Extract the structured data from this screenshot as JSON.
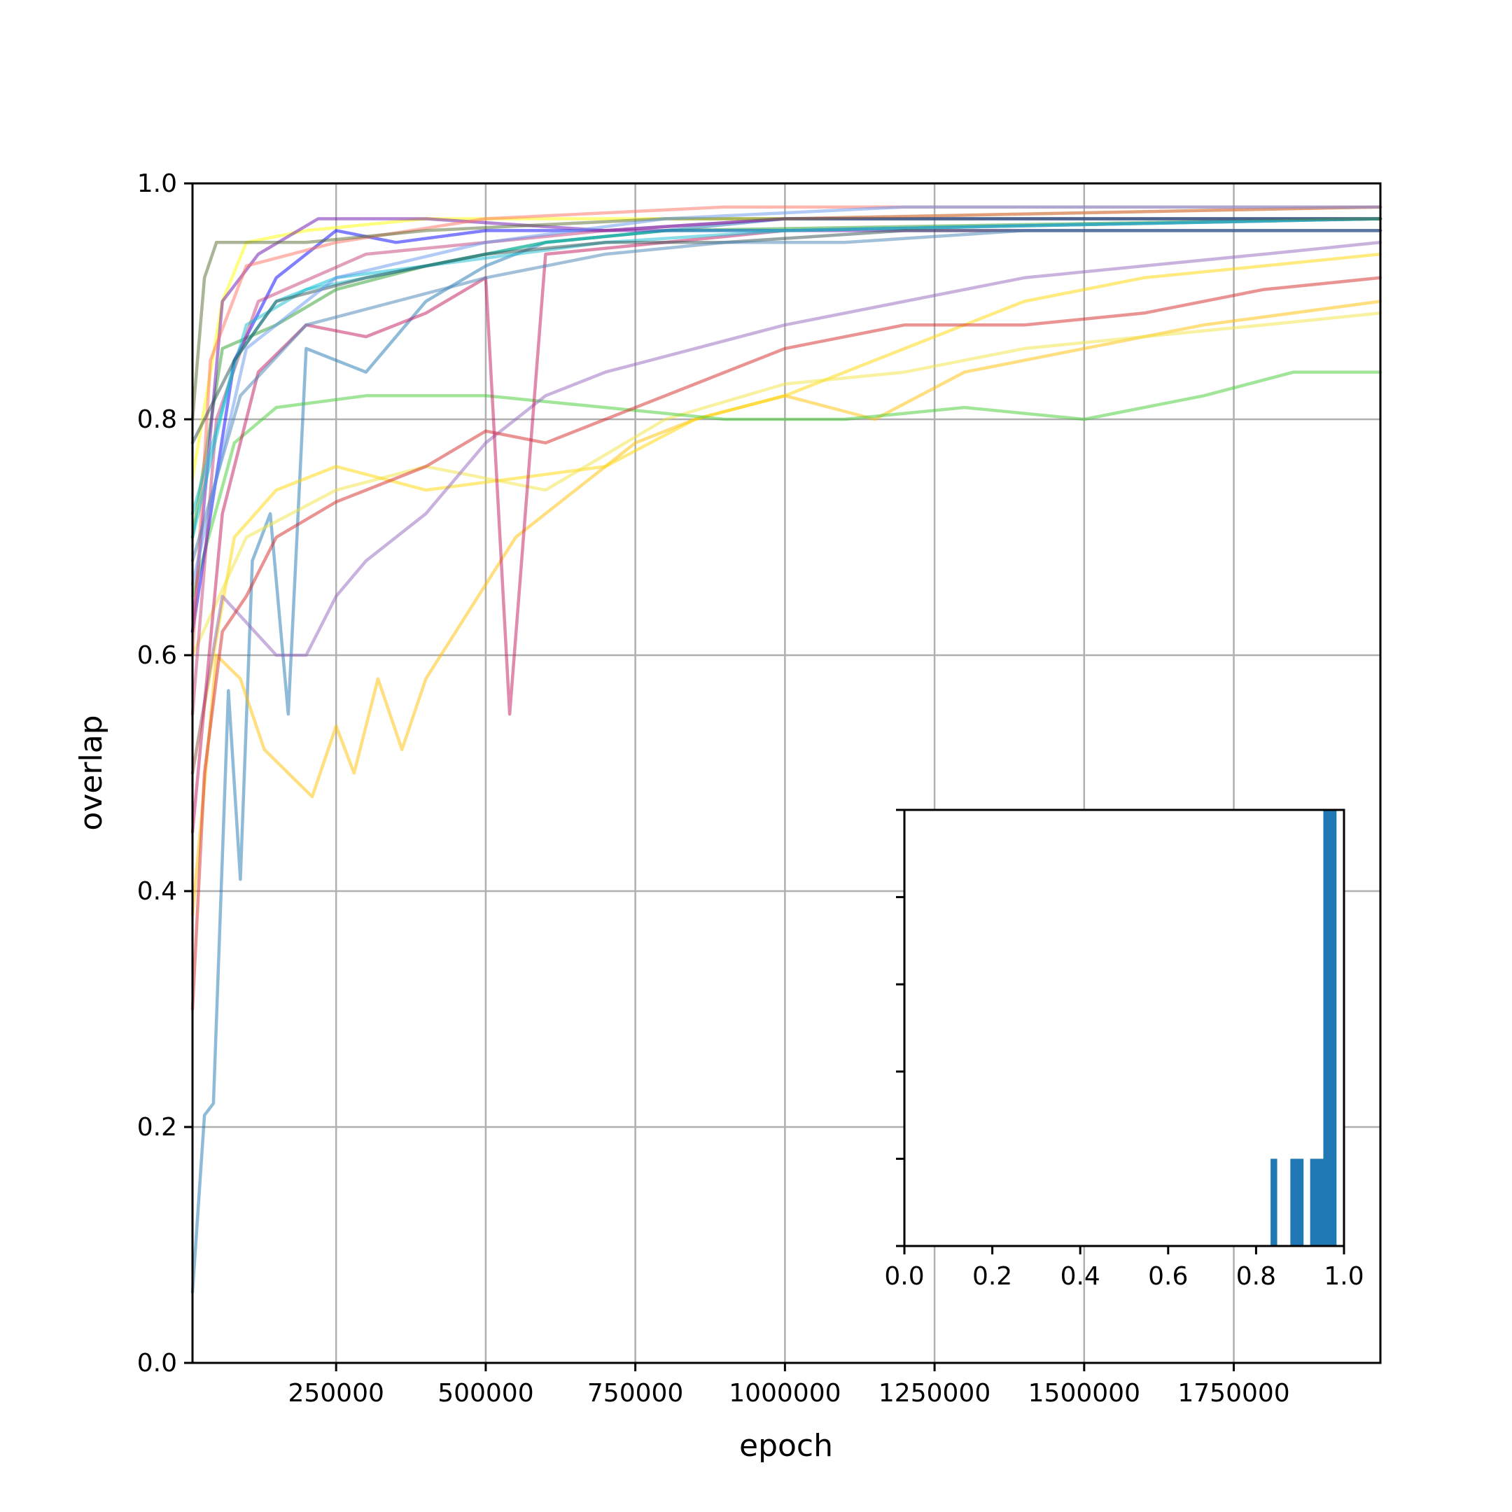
{
  "chart_data": [
    {
      "type": "line",
      "xlabel": "epoch",
      "ylabel": "overlap",
      "xlim": [
        10000,
        1995000
      ],
      "ylim": [
        0.0,
        1.0
      ],
      "grid": true,
      "x_ticks": [
        250000,
        500000,
        750000,
        1000000,
        1250000,
        1500000,
        1750000
      ],
      "x_tick_labels": [
        "250000",
        "500000",
        "750000",
        "1000000",
        "1250000",
        "1500000",
        "1750000"
      ],
      "y_ticks": [
        0.0,
        0.2,
        0.4,
        0.6,
        0.8,
        1.0
      ],
      "y_tick_labels": [
        "0.0",
        "0.2",
        "0.4",
        "0.6",
        "0.8",
        "1.0"
      ],
      "series_alpha": 0.5,
      "series": [
        {
          "color": "#1f77b4",
          "values": [
            [
              10000,
              0.06
            ],
            [
              30000,
              0.21
            ],
            [
              45000,
              0.22
            ],
            [
              70000,
              0.57
            ],
            [
              90000,
              0.41
            ],
            [
              110000,
              0.68
            ],
            [
              140000,
              0.72
            ],
            [
              170000,
              0.55
            ],
            [
              200000,
              0.86
            ],
            [
              300000,
              0.84
            ],
            [
              400000,
              0.9
            ],
            [
              500000,
              0.93
            ],
            [
              600000,
              0.95
            ],
            [
              800000,
              0.96
            ],
            [
              1000000,
              0.97
            ],
            [
              1500000,
              0.97
            ],
            [
              1995000,
              0.97
            ]
          ]
        },
        {
          "color": "#ffc000",
          "values": [
            [
              10000,
              0.38
            ],
            [
              50000,
              0.6
            ],
            [
              90000,
              0.58
            ],
            [
              130000,
              0.52
            ],
            [
              170000,
              0.5
            ],
            [
              210000,
              0.48
            ],
            [
              250000,
              0.54
            ],
            [
              280000,
              0.5
            ],
            [
              320000,
              0.58
            ],
            [
              360000,
              0.52
            ],
            [
              400000,
              0.58
            ],
            [
              450000,
              0.62
            ],
            [
              500000,
              0.66
            ],
            [
              550000,
              0.7
            ],
            [
              650000,
              0.74
            ],
            [
              750000,
              0.78
            ],
            [
              850000,
              0.8
            ],
            [
              1000000,
              0.82
            ],
            [
              1150000,
              0.8
            ],
            [
              1300000,
              0.84
            ],
            [
              1500000,
              0.86
            ],
            [
              1700000,
              0.88
            ],
            [
              1995000,
              0.9
            ]
          ]
        },
        {
          "color": "#ffd700",
          "values": [
            [
              10000,
              0.5
            ],
            [
              80000,
              0.7
            ],
            [
              150000,
              0.74
            ],
            [
              250000,
              0.76
            ],
            [
              400000,
              0.74
            ],
            [
              550000,
              0.75
            ],
            [
              700000,
              0.76
            ],
            [
              850000,
              0.8
            ],
            [
              1000000,
              0.82
            ],
            [
              1200000,
              0.86
            ],
            [
              1400000,
              0.9
            ],
            [
              1600000,
              0.92
            ],
            [
              1800000,
              0.93
            ],
            [
              1995000,
              0.94
            ]
          ]
        },
        {
          "color": "#f0e442",
          "values": [
            [
              10000,
              0.6
            ],
            [
              100000,
              0.7
            ],
            [
              250000,
              0.74
            ],
            [
              400000,
              0.76
            ],
            [
              600000,
              0.74
            ],
            [
              800000,
              0.8
            ],
            [
              1000000,
              0.83
            ],
            [
              1200000,
              0.84
            ],
            [
              1400000,
              0.86
            ],
            [
              1600000,
              0.87
            ],
            [
              1800000,
              0.88
            ],
            [
              1995000,
              0.89
            ]
          ]
        },
        {
          "color": "#ffff00",
          "values": [
            [
              10000,
              0.75
            ],
            [
              60000,
              0.9
            ],
            [
              100000,
              0.95
            ],
            [
              200000,
              0.96
            ],
            [
              400000,
              0.97
            ],
            [
              700000,
              0.97
            ],
            [
              1000000,
              0.97
            ],
            [
              1995000,
              0.98
            ]
          ]
        },
        {
          "color": "#2ca02c",
          "values": [
            [
              10000,
              0.7
            ],
            [
              60000,
              0.86
            ],
            [
              150000,
              0.88
            ],
            [
              250000,
              0.91
            ],
            [
              400000,
              0.93
            ],
            [
              600000,
              0.95
            ],
            [
              800000,
              0.96
            ],
            [
              1995000,
              0.97
            ]
          ]
        },
        {
          "color": "#44cc33",
          "values": [
            [
              10000,
              0.65
            ],
            [
              80000,
              0.78
            ],
            [
              150000,
              0.81
            ],
            [
              300000,
              0.82
            ],
            [
              500000,
              0.82
            ],
            [
              700000,
              0.81
            ],
            [
              900000,
              0.8
            ],
            [
              1100000,
              0.8
            ],
            [
              1300000,
              0.81
            ],
            [
              1500000,
              0.8
            ],
            [
              1700000,
              0.82
            ],
            [
              1850000,
              0.84
            ],
            [
              1995000,
              0.84
            ]
          ]
        },
        {
          "color": "#9467bd",
          "values": [
            [
              10000,
              0.5
            ],
            [
              60000,
              0.65
            ],
            [
              150000,
              0.6
            ],
            [
              200000,
              0.6
            ],
            [
              250000,
              0.65
            ],
            [
              300000,
              0.68
            ],
            [
              400000,
              0.72
            ],
            [
              500000,
              0.78
            ],
            [
              600000,
              0.82
            ],
            [
              700000,
              0.84
            ],
            [
              850000,
              0.86
            ],
            [
              1000000,
              0.88
            ],
            [
              1200000,
              0.9
            ],
            [
              1400000,
              0.92
            ],
            [
              1600000,
              0.93
            ],
            [
              1800000,
              0.94
            ],
            [
              1995000,
              0.95
            ]
          ]
        },
        {
          "color": "#0000ff",
          "values": [
            [
              10000,
              0.62
            ],
            [
              80000,
              0.85
            ],
            [
              150000,
              0.92
            ],
            [
              250000,
              0.96
            ],
            [
              350000,
              0.95
            ],
            [
              500000,
              0.96
            ],
            [
              700000,
              0.96
            ],
            [
              1000000,
              0.97
            ],
            [
              1995000,
              0.97
            ]
          ]
        },
        {
          "color": "#6a0dad",
          "values": [
            [
              10000,
              0.62
            ],
            [
              60000,
              0.9
            ],
            [
              120000,
              0.94
            ],
            [
              220000,
              0.97
            ],
            [
              400000,
              0.97
            ],
            [
              700000,
              0.96
            ],
            [
              1000000,
              0.96
            ],
            [
              1995000,
              0.96
            ]
          ]
        },
        {
          "color": "#d62728",
          "values": [
            [
              10000,
              0.3
            ],
            [
              30000,
              0.5
            ],
            [
              60000,
              0.62
            ],
            [
              100000,
              0.65
            ],
            [
              150000,
              0.7
            ],
            [
              250000,
              0.73
            ],
            [
              400000,
              0.76
            ],
            [
              500000,
              0.79
            ],
            [
              600000,
              0.78
            ],
            [
              700000,
              0.8
            ],
            [
              850000,
              0.83
            ],
            [
              1000000,
              0.86
            ],
            [
              1200000,
              0.88
            ],
            [
              1400000,
              0.88
            ],
            [
              1600000,
              0.89
            ],
            [
              1800000,
              0.91
            ],
            [
              1995000,
              0.92
            ]
          ]
        },
        {
          "color": "#c2185b",
          "values": [
            [
              10000,
              0.45
            ],
            [
              60000,
              0.72
            ],
            [
              120000,
              0.84
            ],
            [
              200000,
              0.88
            ],
            [
              300000,
              0.87
            ],
            [
              400000,
              0.89
            ],
            [
              500000,
              0.92
            ],
            [
              540000,
              0.55
            ],
            [
              600000,
              0.94
            ],
            [
              800000,
              0.95
            ],
            [
              1000000,
              0.96
            ],
            [
              1995000,
              0.97
            ]
          ]
        },
        {
          "color": "#c6407a",
          "values": [
            [
              10000,
              0.55
            ],
            [
              50000,
              0.8
            ],
            [
              120000,
              0.9
            ],
            [
              300000,
              0.94
            ],
            [
              500000,
              0.95
            ],
            [
              700000,
              0.96
            ],
            [
              1000000,
              0.97
            ],
            [
              1995000,
              0.98
            ]
          ]
        },
        {
          "color": "#ff6f61",
          "values": [
            [
              10000,
              0.6
            ],
            [
              40000,
              0.85
            ],
            [
              100000,
              0.93
            ],
            [
              250000,
              0.95
            ],
            [
              500000,
              0.97
            ],
            [
              900000,
              0.98
            ],
            [
              1995000,
              0.98
            ]
          ]
        },
        {
          "color": "#00bcd4",
          "values": [
            [
              10000,
              0.7
            ],
            [
              80000,
              0.85
            ],
            [
              150000,
              0.9
            ],
            [
              250000,
              0.92
            ],
            [
              400000,
              0.93
            ],
            [
              600000,
              0.95
            ],
            [
              800000,
              0.96
            ],
            [
              1000000,
              0.96
            ],
            [
              1995000,
              0.97
            ]
          ]
        },
        {
          "color": "#17becf",
          "values": [
            [
              10000,
              0.72
            ],
            [
              100000,
              0.88
            ],
            [
              200000,
              0.91
            ],
            [
              400000,
              0.93
            ],
            [
              700000,
              0.95
            ],
            [
              1000000,
              0.96
            ],
            [
              1995000,
              0.97
            ]
          ]
        },
        {
          "color": "#2f4f4f",
          "values": [
            [
              10000,
              0.78
            ],
            [
              80000,
              0.85
            ],
            [
              150000,
              0.9
            ],
            [
              300000,
              0.92
            ],
            [
              500000,
              0.94
            ],
            [
              700000,
              0.95
            ],
            [
              900000,
              0.95
            ],
            [
              1200000,
              0.96
            ],
            [
              1995000,
              0.96
            ]
          ]
        },
        {
          "color": "#556b2f",
          "values": [
            [
              10000,
              0.8
            ],
            [
              30000,
              0.92
            ],
            [
              50000,
              0.95
            ],
            [
              80000,
              0.95
            ],
            [
              200000,
              0.95
            ],
            [
              400000,
              0.96
            ],
            [
              800000,
              0.97
            ],
            [
              1995000,
              0.97
            ]
          ]
        },
        {
          "color": "#4682b4",
          "values": [
            [
              10000,
              0.68
            ],
            [
              90000,
              0.82
            ],
            [
              200000,
              0.88
            ],
            [
              350000,
              0.9
            ],
            [
              500000,
              0.92
            ],
            [
              700000,
              0.94
            ],
            [
              900000,
              0.95
            ],
            [
              1100000,
              0.95
            ],
            [
              1400000,
              0.96
            ],
            [
              1995000,
              0.96
            ]
          ]
        },
        {
          "color": "#6495ed",
          "values": [
            [
              10000,
              0.66
            ],
            [
              100000,
              0.86
            ],
            [
              250000,
              0.92
            ],
            [
              500000,
              0.95
            ],
            [
              800000,
              0.97
            ],
            [
              1200000,
              0.98
            ],
            [
              1995000,
              0.98
            ]
          ]
        }
      ]
    },
    {
      "type": "bar",
      "xlim": [
        0.0,
        1.0
      ],
      "x_ticks": [
        0.0,
        0.2,
        0.4,
        0.6,
        0.8,
        1.0
      ],
      "x_tick_labels": [
        "0.0",
        "0.2",
        "0.4",
        "0.6",
        "0.8",
        "1.0"
      ],
      "ylim": [
        0,
        5
      ],
      "y_ticks": [
        0,
        1,
        2,
        3,
        4,
        5
      ],
      "color": "#1f77b4",
      "bins": [
        {
          "start": 0.833,
          "end": 0.848,
          "count": 1
        },
        {
          "start": 0.878,
          "end": 0.908,
          "count": 1
        },
        {
          "start": 0.923,
          "end": 0.953,
          "count": 1
        },
        {
          "start": 0.953,
          "end": 0.983,
          "count": 5
        }
      ]
    }
  ]
}
